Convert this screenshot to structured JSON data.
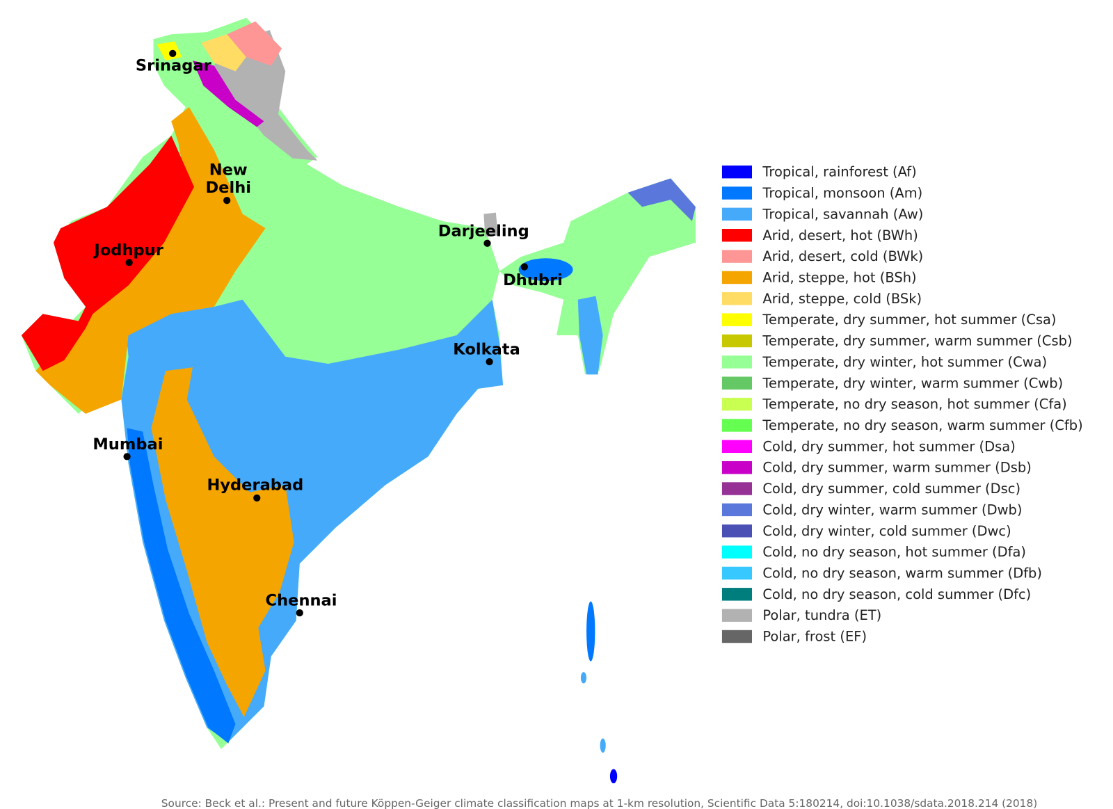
{
  "map": {
    "cities": [
      "Srinagar",
      "New\nDelhi",
      "Jodhpur",
      "Darjeeling",
      "Dhubri",
      "Kolkata",
      "Mumbai",
      "Hyderabad",
      "Chennai"
    ],
    "legend": [
      {
        "label": "Tropical, rainforest (Af)",
        "color": "#0000ff"
      },
      {
        "label": "Tropical, monsoon (Am)",
        "color": "#0078ff"
      },
      {
        "label": "Tropical, savannah (Aw)",
        "color": "#46aafa"
      },
      {
        "label": "Arid, desert, hot (BWh)",
        "color": "#ff0000"
      },
      {
        "label": "Arid, desert, cold (BWk)",
        "color": "#ff9696"
      },
      {
        "label": "Arid, steppe, hot (BSh)",
        "color": "#f5a500"
      },
      {
        "label": "Arid, steppe, cold (BSk)",
        "color": "#ffdc64"
      },
      {
        "label": "Temperate, dry summer, hot summer (Csa)",
        "color": "#ffff00"
      },
      {
        "label": "Temperate, dry summer, warm summer (Csb)",
        "color": "#c8c800"
      },
      {
        "label": "Temperate, dry winter, hot summer (Cwa)",
        "color": "#96ff96"
      },
      {
        "label": "Temperate, dry winter, warm summer (Cwb)",
        "color": "#64c864"
      },
      {
        "label": "Temperate, no dry season, hot summer (Cfa)",
        "color": "#c8ff50"
      },
      {
        "label": "Temperate, no dry season, warm summer (Cfb)",
        "color": "#64ff50"
      },
      {
        "label": "Cold, dry summer, hot summer (Dsa)",
        "color": "#ff00ff"
      },
      {
        "label": "Cold, dry summer, warm summer (Dsb)",
        "color": "#c800c8"
      },
      {
        "label": "Cold, dry summer, cold summer (Dsc)",
        "color": "#963296"
      },
      {
        "label": "Cold, dry winter, warm summer (Dwb)",
        "color": "#5a78dc"
      },
      {
        "label": "Cold, dry winter, cold summer (Dwc)",
        "color": "#4b50b4"
      },
      {
        "label": "Cold, no dry season, hot summer (Dfa)",
        "color": "#00ffff"
      },
      {
        "label": "Cold, no dry season, warm summer (Dfb)",
        "color": "#37c8ff"
      },
      {
        "label": "Cold, no dry season, cold summer (Dfc)",
        "color": "#007d7d"
      },
      {
        "label": "Polar, tundra (ET)",
        "color": "#b2b2b2"
      },
      {
        "label": "Polar, frost (EF)",
        "color": "#666666"
      }
    ],
    "source": "Source: Beck et al.: Present and future Köppen-Geiger climate classification maps at 1-km resolution, Scientific Data 5:180214, doi:10.1038/sdata.2018.214 (2018)"
  }
}
